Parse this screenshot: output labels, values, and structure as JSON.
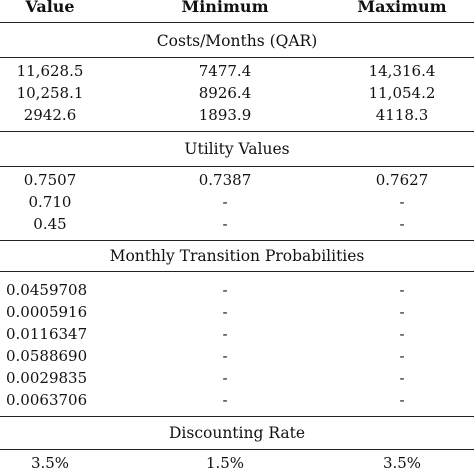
{
  "header": {
    "value": "Value",
    "minimum": "Minimum",
    "maximum": "Maximum"
  },
  "sections": [
    {
      "title": "Costs/Months (QAR)",
      "rows": [
        [
          "11,628.5",
          "7477.4",
          "14,316.4"
        ],
        [
          "10,258.1",
          "8926.4",
          "11,054.2"
        ],
        [
          "2942.6",
          "1893.9",
          "4118.3"
        ]
      ]
    },
    {
      "title": "Utility Values",
      "rows": [
        [
          "0.7507",
          "0.7387",
          "0.7627"
        ],
        [
          "0.710",
          "-",
          "-"
        ],
        [
          "0.45",
          "-",
          "-"
        ]
      ]
    },
    {
      "title": "Monthly Transition Probabilities",
      "rows": [
        [
          "0.0459708",
          "-",
          "-"
        ],
        [
          "0.0005916",
          "-",
          "-"
        ],
        [
          "0.0116347",
          "-",
          "-"
        ],
        [
          "0.0588690",
          "-",
          "-"
        ],
        [
          "0.0029835",
          "-",
          "-"
        ],
        [
          "0.0063706",
          "-",
          "-"
        ]
      ]
    },
    {
      "title": "Discounting Rate",
      "rows": [
        [
          "3.5%",
          "1.5%",
          "3.5%"
        ]
      ]
    }
  ]
}
